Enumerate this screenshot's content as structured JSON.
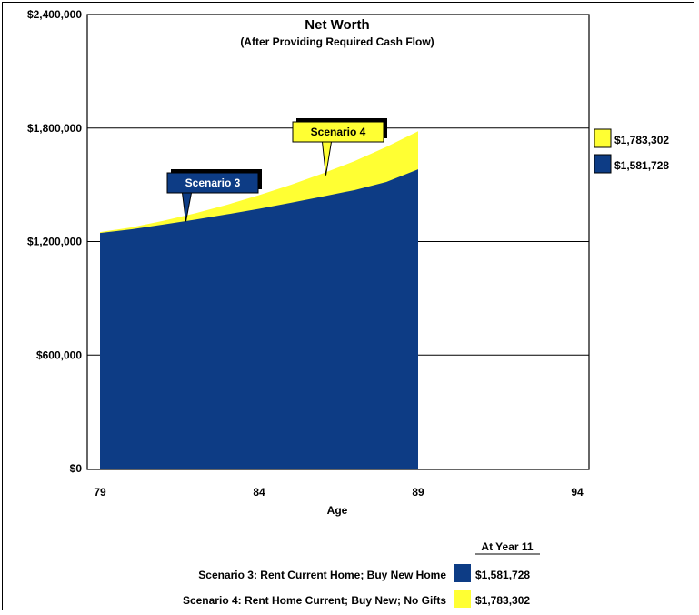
{
  "chart_data": {
    "type": "area",
    "title": "Net Worth",
    "subtitle": "(After Providing Required Cash Flow)",
    "xlabel": "Age",
    "ylabel": "",
    "xlim": [
      79,
      94
    ],
    "ylim": [
      0,
      2400000
    ],
    "x_ticks": [
      "79",
      "84",
      "89",
      "94"
    ],
    "y_ticks": [
      "$0",
      "$600,000",
      "$1,200,000",
      "$1,800,000",
      "$2,400,000"
    ],
    "x": [
      79,
      80,
      81,
      82,
      83,
      84,
      85,
      86,
      87,
      88,
      89
    ],
    "series": [
      {
        "name": "Scenario 3",
        "color": "#0d3c85",
        "values": [
          1245000,
          1265000,
          1290000,
          1316000,
          1344000,
          1373000,
          1405000,
          1438000,
          1472000,
          1515000,
          1581728
        ]
      },
      {
        "name": "Scenario 4",
        "color": "#ffff33",
        "values": [
          1250000,
          1275000,
          1310000,
          1350000,
          1395000,
          1445000,
          1500000,
          1560000,
          1625000,
          1700000,
          1783302
        ]
      }
    ],
    "callouts": [
      {
        "label": "Scenario 3",
        "series": "Scenario 3"
      },
      {
        "label": "Scenario 4",
        "series": "Scenario 4"
      }
    ],
    "end_values": [
      {
        "label": "$1,783,302",
        "color": "#ffff33"
      },
      {
        "label": "$1,581,728",
        "color": "#0d3c85"
      }
    ],
    "grid": true,
    "legend": {
      "header": "At Year 11",
      "entries": [
        {
          "label": "Scenario 3:  Rent Current Home; Buy New Home",
          "value": "$1,581,728",
          "color": "#0d3c85"
        },
        {
          "label": "Scenario 4:  Rent Home Current; Buy New; No Gifts",
          "value": "$1,783,302",
          "color": "#ffff33"
        }
      ]
    }
  }
}
